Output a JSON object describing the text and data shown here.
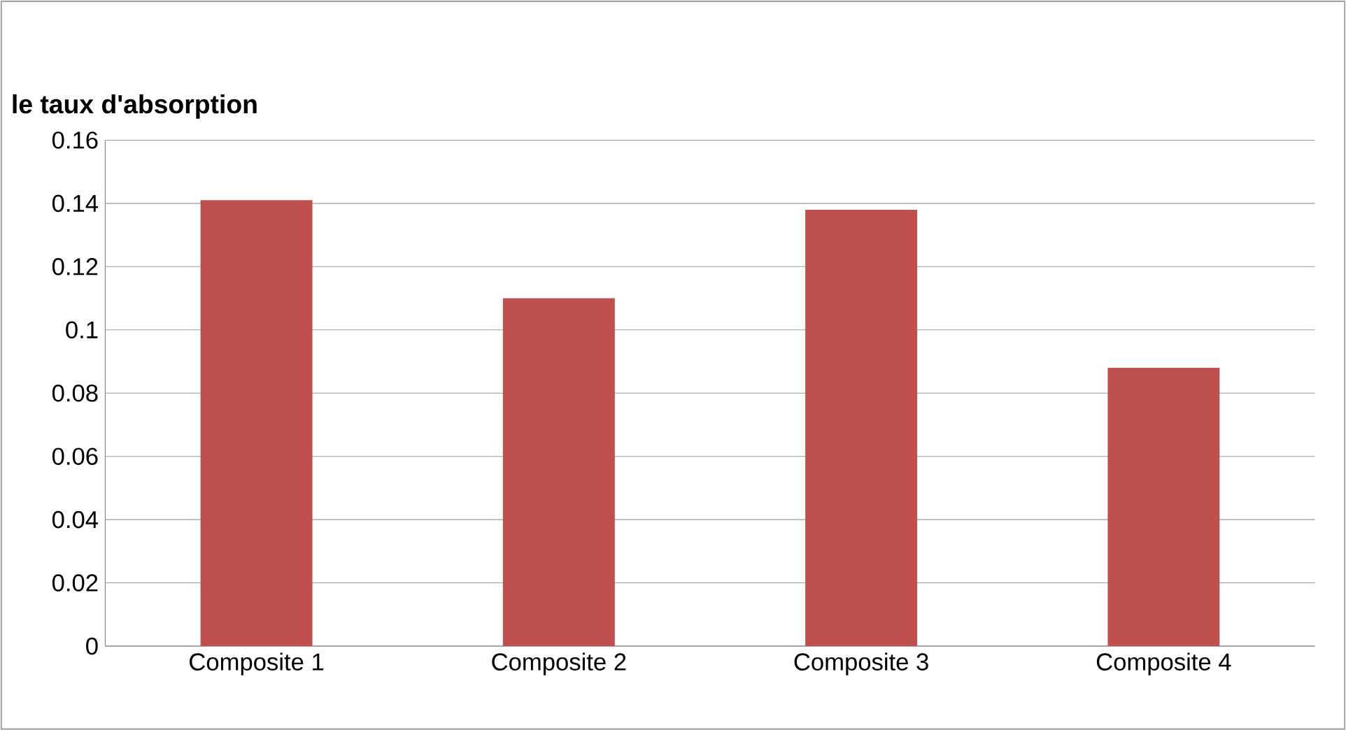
{
  "chart_data": {
    "type": "bar",
    "ylabel": "le taux d'absorption",
    "categories": [
      "Composite 1",
      "Composite 2",
      "Composite 3",
      "Composite 4"
    ],
    "values": [
      0.141,
      0.11,
      0.138,
      0.088
    ],
    "color": "#c0504d",
    "ylim": [
      0,
      0.16
    ],
    "yticks": [
      0,
      0.02,
      0.04,
      0.06,
      0.08,
      0.1,
      0.12,
      0.14,
      0.16
    ],
    "grid": "y"
  }
}
